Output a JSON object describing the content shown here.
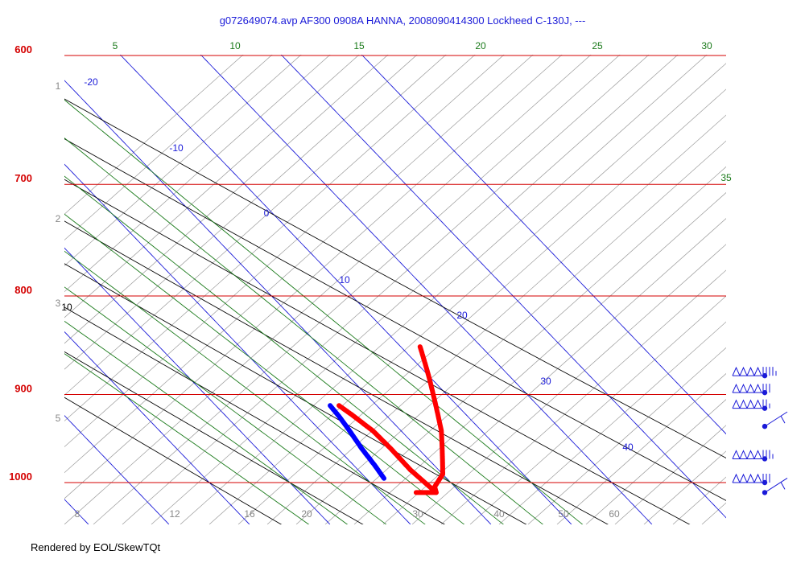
{
  "chart_data": {
    "type": "line",
    "title": "g072649074.avp  AF300 0908A HANNA, 2008090414300 Lockheed C-130J, ---",
    "footer": "Rendered by EOL/SkewTQt",
    "y_scale": "log-pressure",
    "ylim": [
      1020,
      600
    ],
    "isobars": {
      "values": [
        600,
        700,
        800,
        900,
        1000
      ],
      "color": "#d40000"
    },
    "isotherms": {
      "values": [
        -20,
        -10,
        0,
        10,
        20,
        30,
        40
      ],
      "labels": [
        "-20",
        "-10",
        "0",
        "10",
        "20",
        "30",
        "40"
      ],
      "color": "#1a1ad8"
    },
    "dry_adiabats": {
      "values": [
        10,
        20,
        30,
        40,
        50,
        60
      ],
      "labels": [
        "10",
        "20",
        "30",
        "40",
        "50",
        "60"
      ],
      "color": "#000000"
    },
    "moist_adiabats": {
      "values": [
        5,
        10,
        15,
        20,
        25,
        30,
        35
      ],
      "labels": [
        "5",
        "10",
        "15",
        "20",
        "25",
        "30",
        "35"
      ],
      "color": "#1a7a1a"
    },
    "mixing_ratio": {
      "bottom_labels": [
        "8",
        "12",
        "16",
        "20",
        "30",
        "40",
        "50",
        "60"
      ],
      "left_labels": [
        "1",
        "2",
        "3",
        "5"
      ],
      "color": "#888888"
    },
    "series": [
      {
        "name": "",
        "color": "#ff0000",
        "points": [
          [
            1012,
            24.5
          ],
          [
            1012,
            27.0
          ],
          [
            1005,
            27.5
          ],
          [
            990,
            30.0
          ],
          [
            965,
            32.5
          ],
          [
            940,
            35.0
          ],
          [
            910,
            37.5
          ],
          [
            880,
            40.0
          ],
          [
            855,
            42.0
          ],
          [
            850,
            42.4
          ]
        ]
      },
      {
        "name": "",
        "color": "#ff0000",
        "points": [
          [
            1012,
            27.0
          ],
          [
            985,
            26.5
          ],
          [
            960,
            26.6
          ],
          [
            940,
            26.5
          ],
          [
            922,
            25.8
          ],
          [
            912,
            25.3
          ]
        ]
      },
      {
        "name": "",
        "color": "#0000ff",
        "points": [
          [
            995,
            22.2
          ],
          [
            980,
            22.6
          ],
          [
            960,
            23.0
          ],
          [
            940,
            23.6
          ],
          [
            925,
            24.0
          ],
          [
            912,
            24.2
          ]
        ]
      }
    ],
    "wind_barbs": [
      {
        "pressure": 880,
        "flags": 4,
        "barbs": 4.5
      },
      {
        "pressure": 898,
        "flags": 4,
        "barbs": 3
      },
      {
        "pressure": 915,
        "flags": 4,
        "barbs": 2.5
      },
      {
        "pressure": 935,
        "flags": 0,
        "barbs": 2
      },
      {
        "pressure": 972,
        "flags": 4,
        "barbs": 3.5
      },
      {
        "pressure": 1000,
        "flags": 4,
        "barbs": 3
      },
      {
        "pressure": 1012,
        "flags": 0,
        "barbs": 1
      }
    ]
  }
}
